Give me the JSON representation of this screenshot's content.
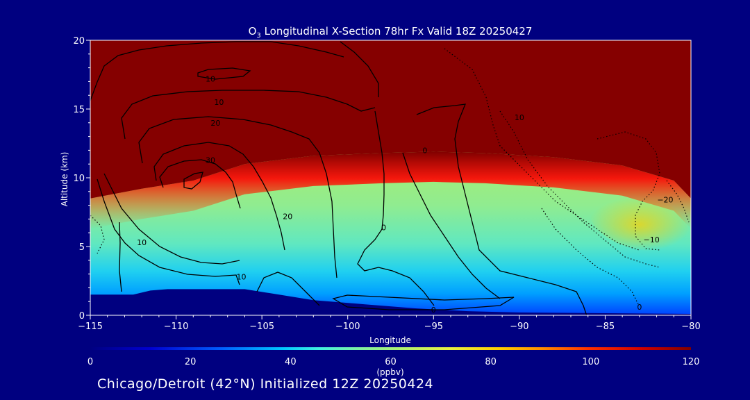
{
  "chart_data": {
    "type": "heatmap",
    "title": "O3 Longitudinal X-Section 78hr  Fx Valid 18Z 20250427",
    "title_parts": {
      "pre": "O",
      "sub": "3",
      "post": " Longitudinal X-Section 78hr  Fx Valid 18Z 20250427"
    },
    "xlabel": "Longitude",
    "ylabel": "Altitude (km)",
    "xlim": [
      -115,
      -80
    ],
    "ylim": [
      0,
      20
    ],
    "xticks": [
      -115,
      -110,
      -105,
      -100,
      -95,
      -90,
      -85,
      -80
    ],
    "xtick_labels": [
      "−115",
      "−110",
      "−105",
      "−100",
      "−95",
      "−90",
      "−85",
      "−80"
    ],
    "yticks": [
      0,
      5,
      10,
      15,
      20
    ],
    "ytick_labels": [
      "0",
      "5",
      "10",
      "15",
      "20"
    ],
    "grid": false,
    "colorbar": {
      "label": "(ppbv)",
      "range": [
        0,
        120
      ],
      "ticks": [
        0,
        20,
        40,
        60,
        80,
        100,
        120
      ],
      "tick_labels": [
        "0",
        "20",
        "40",
        "60",
        "80",
        "100",
        "120"
      ],
      "colormap": "rainbow (blue-cyan-green-yellow-orange-red-dark red)"
    },
    "shaded_field": {
      "variable": "O3 concentration (ppbv)",
      "tropopause_height_km": [
        {
          "x": -115,
          "y": 8.5
        },
        {
          "x": -112,
          "y": 9.2
        },
        {
          "x": -109,
          "y": 9.8
        },
        {
          "x": -106,
          "y": 11.0
        },
        {
          "x": -102,
          "y": 11.6
        },
        {
          "x": -98,
          "y": 11.8
        },
        {
          "x": -95,
          "y": 11.9
        },
        {
          "x": -92,
          "y": 11.8
        },
        {
          "x": -88,
          "y": 11.5
        },
        {
          "x": -84,
          "y": 10.9
        },
        {
          "x": -81,
          "y": 9.8
        },
        {
          "x": -80,
          "y": 8.5
        }
      ],
      "boundary_layer_top_km": [
        {
          "x": -115,
          "y": 2.2
        },
        {
          "x": -105,
          "y": 2.3
        },
        {
          "x": -95,
          "y": 2.0
        },
        {
          "x": -85,
          "y": 1.8
        },
        {
          "x": -80,
          "y": 1.6
        }
      ]
    },
    "terrain_height_km": [
      {
        "x": -115,
        "y": 1.5
      },
      {
        "x": -112.5,
        "y": 1.5
      },
      {
        "x": -111.5,
        "y": 1.8
      },
      {
        "x": -110.5,
        "y": 1.9
      },
      {
        "x": -106,
        "y": 1.9
      },
      {
        "x": -104.5,
        "y": 1.6
      },
      {
        "x": -102,
        "y": 1.1
      },
      {
        "x": -99,
        "y": 0.8
      },
      {
        "x": -96,
        "y": 0.5
      },
      {
        "x": -93,
        "y": 0.3
      },
      {
        "x": -90,
        "y": 0.2
      },
      {
        "x": -85,
        "y": 0.15
      },
      {
        "x": -80,
        "y": 0.1
      }
    ],
    "contour_labels": [
      {
        "text": "10",
        "x": -108,
        "y": 17.2
      },
      {
        "text": "10",
        "x": -107.5,
        "y": 15.5
      },
      {
        "text": "20",
        "x": -107.7,
        "y": 14.0
      },
      {
        "text": "30",
        "x": -108,
        "y": 11.3
      },
      {
        "text": "20",
        "x": -103.5,
        "y": 7.2
      },
      {
        "text": "10",
        "x": -112,
        "y": 5.3
      },
      {
        "text": "10",
        "x": -106.2,
        "y": 2.8
      },
      {
        "text": "0",
        "x": -95.5,
        "y": 12.0
      },
      {
        "text": "0",
        "x": -97.9,
        "y": 6.4
      },
      {
        "text": "0",
        "x": -95,
        "y": 0.4
      },
      {
        "text": "10",
        "x": -90,
        "y": 14.4
      },
      {
        "text": "−20",
        "x": -81.5,
        "y": 8.4
      },
      {
        "text": "−10",
        "x": -82.3,
        "y": 5.5
      },
      {
        "text": "0",
        "x": -83,
        "y": 0.6
      }
    ]
  },
  "caption": "Chicago/Detroit (42°N) Initialized 12Z 20250424"
}
